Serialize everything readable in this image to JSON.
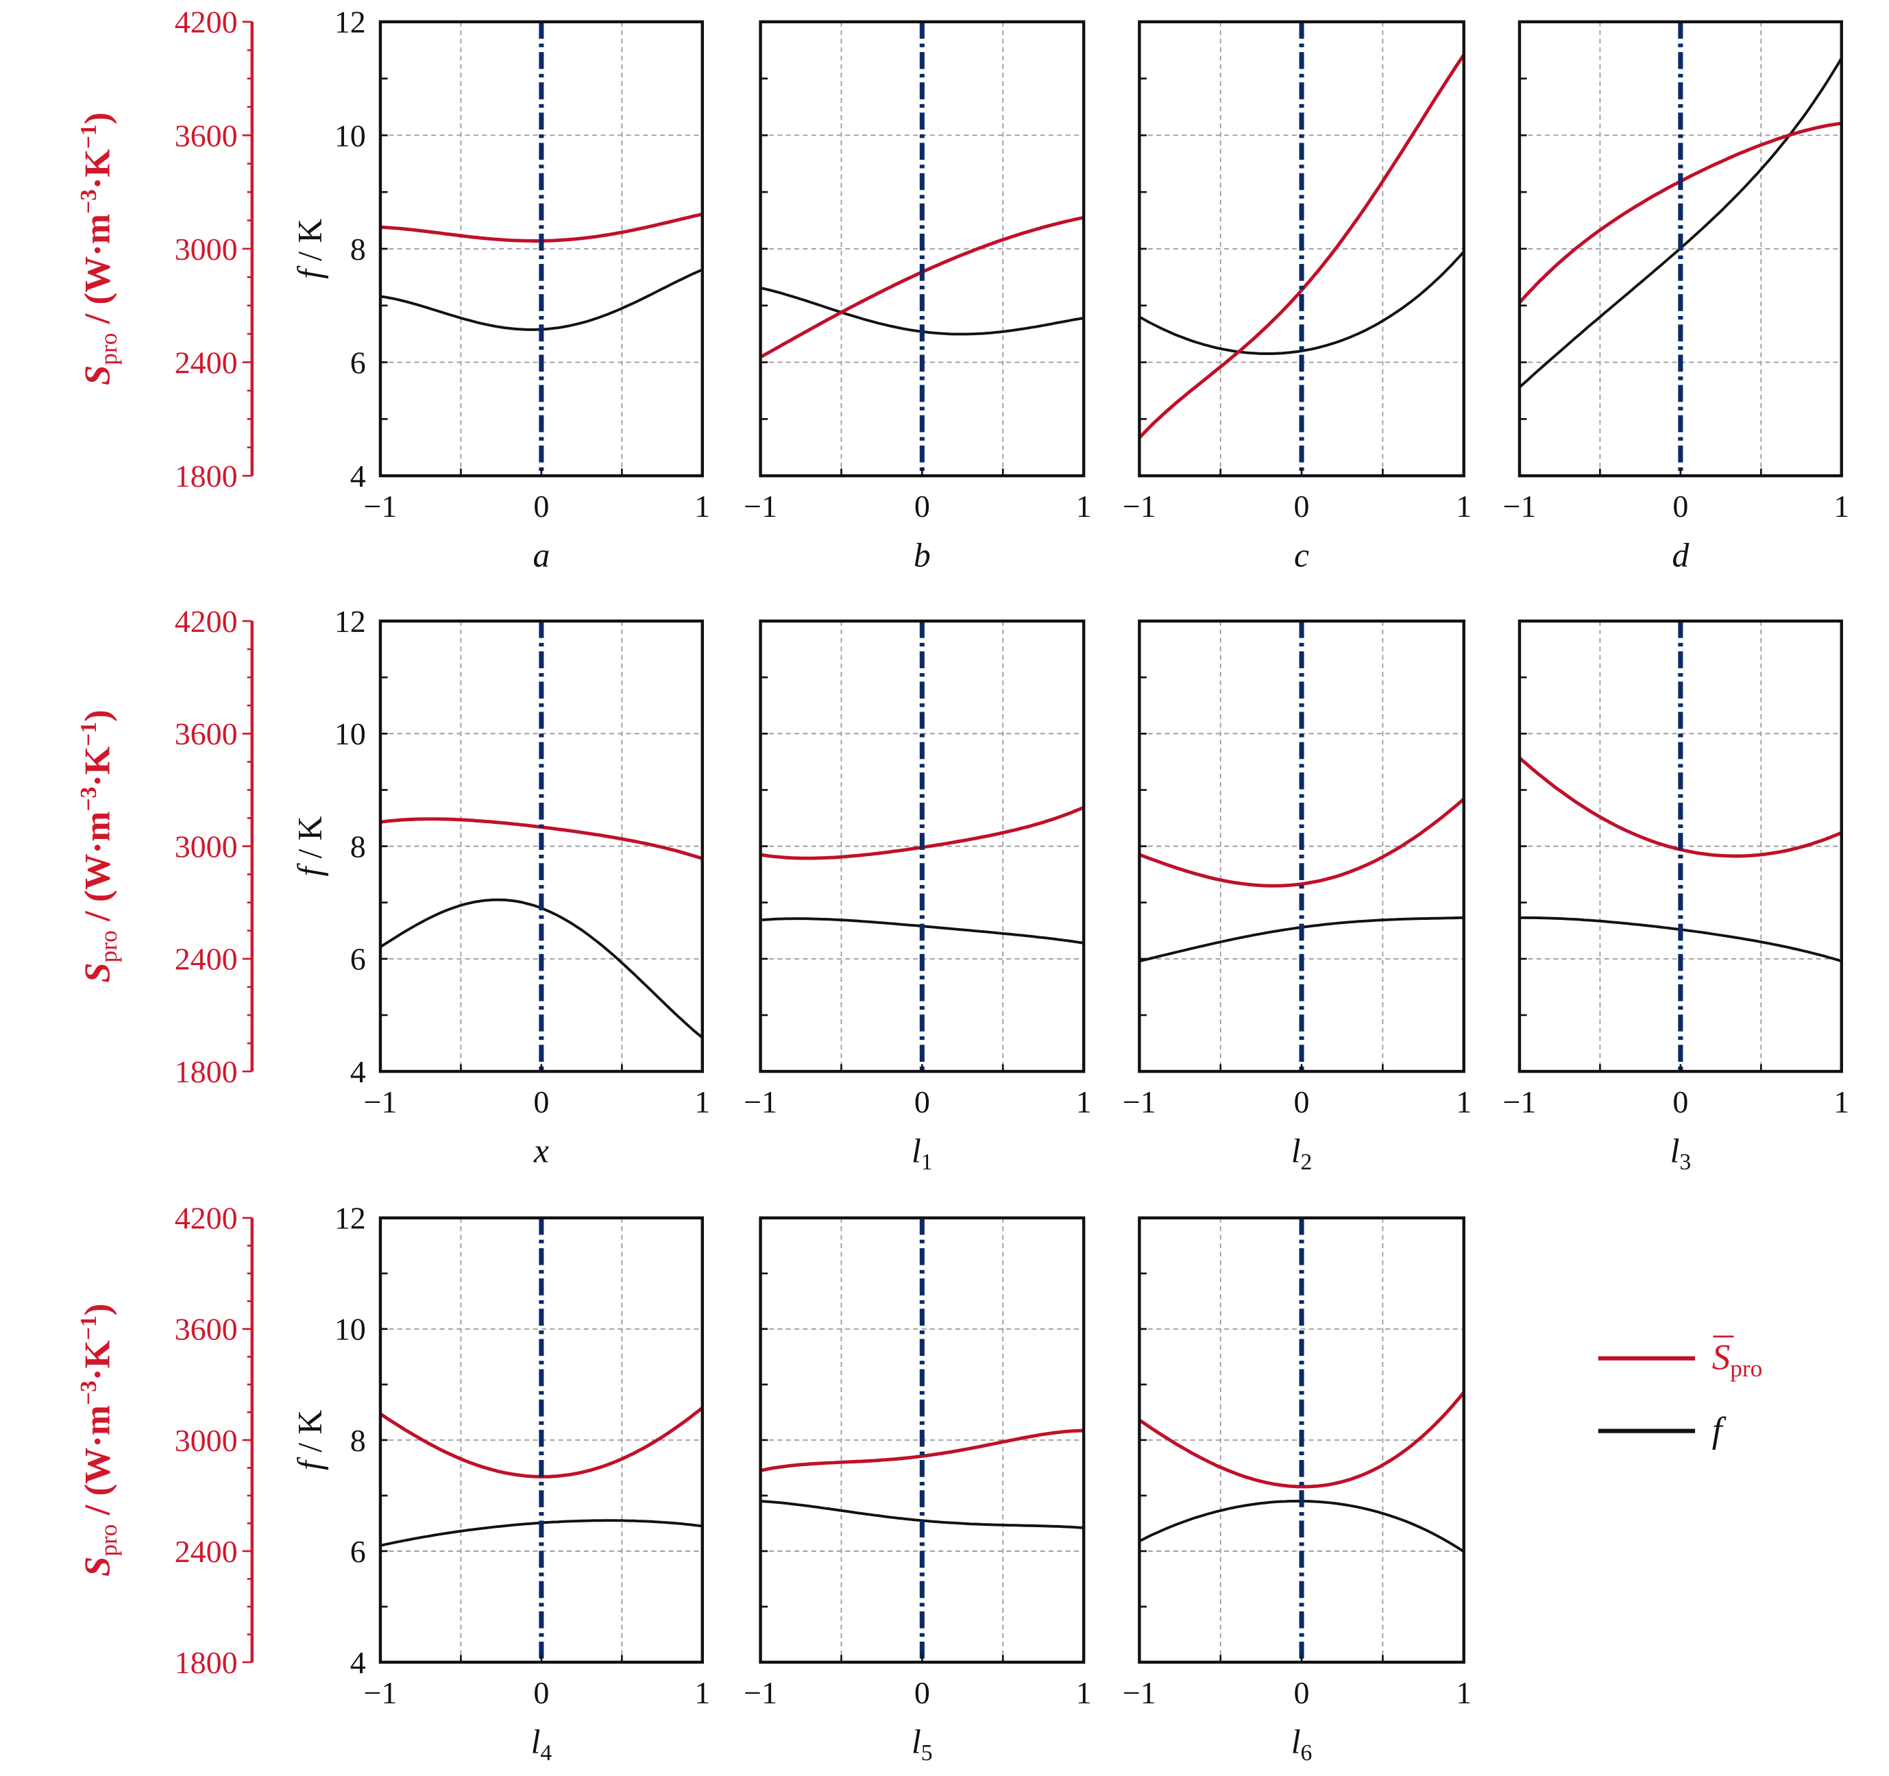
{
  "chart_data": {
    "type": "line",
    "layout": "3x4 small multiples",
    "colors": {
      "S_pro": "#c0102a",
      "f": "#111111",
      "center_line": "#0b2a66",
      "grid": "#999999",
      "red_axis": "#d0182b"
    },
    "x_ticks": [
      "−1",
      "0",
      "1"
    ],
    "x_range": [
      -1,
      1
    ],
    "y_left": {
      "label": {
        "symbol": "f",
        "unit": " / K"
      },
      "range": [
        4,
        12
      ],
      "ticks": [
        "4",
        "6",
        "8",
        "10",
        "12"
      ]
    },
    "y_red": {
      "label": {
        "symbol": "S",
        "sub": "pro",
        "unit": " / (W·m",
        "exp1": "−3",
        "mid": "·K",
        "exp2": "−1",
        "close": ")"
      },
      "range": [
        1800,
        4200
      ],
      "ticks": [
        "1800",
        "2400",
        "3000",
        "3600",
        "4200"
      ]
    },
    "grid": true,
    "center_line_at": 0,
    "legend": {
      "placement": "bottom-right",
      "items": [
        {
          "symbol": "S",
          "sub": "pro",
          "series": "S_pro"
        },
        {
          "symbol": "f",
          "sub": "",
          "series": "f"
        }
      ]
    },
    "x": [
      -1,
      -0.5,
      0,
      0.5,
      1
    ],
    "panels": [
      {
        "xlabel": {
          "main": "a",
          "sub": ""
        },
        "S_pro": [
          3114,
          3069,
          3042,
          3087,
          3183
        ],
        "f": [
          7.16,
          6.78,
          6.58,
          6.95,
          7.63
        ]
      },
      {
        "xlabel": {
          "main": "b",
          "sub": ""
        },
        "S_pro": [
          2427,
          2664,
          2877,
          3048,
          3165
        ],
        "f": [
          7.31,
          6.88,
          6.54,
          6.54,
          6.78
        ]
      },
      {
        "xlabel": {
          "main": "c",
          "sub": ""
        },
        "S_pro": [
          2001,
          2376,
          2781,
          3357,
          4026
        ],
        "f": [
          6.8,
          6.24,
          6.2,
          6.73,
          7.95
        ]
      },
      {
        "xlabel": {
          "main": "d",
          "sub": ""
        },
        "S_pro": [
          2715,
          3099,
          3357,
          3549,
          3663
        ],
        "f": [
          5.56,
          6.8,
          8.01,
          9.4,
          11.36
        ]
      },
      {
        "xlabel": {
          "main": "x",
          "sub": ""
        },
        "S_pro": [
          3129,
          3141,
          3102,
          3039,
          2934
        ],
        "f": [
          6.21,
          6.95,
          6.9,
          5.93,
          4.6
        ]
      },
      {
        "xlabel": {
          "main": "l",
          "sub": "1"
        },
        "S_pro": [
          2955,
          2943,
          2994,
          3072,
          3207
        ],
        "f": [
          6.69,
          6.69,
          6.58,
          6.45,
          6.28
        ]
      },
      {
        "xlabel": {
          "main": "l",
          "sub": "2"
        },
        "S_pro": [
          2955,
          2820,
          2799,
          2943,
          3252
        ],
        "f": [
          5.96,
          6.3,
          6.56,
          6.69,
          6.73
        ]
      },
      {
        "xlabel": {
          "main": "l",
          "sub": "3"
        },
        "S_pro": [
          3471,
          3156,
          2982,
          2955,
          3072
        ],
        "f": [
          6.73,
          6.67,
          6.52,
          6.3,
          5.96
        ]
      },
      {
        "xlabel": {
          "main": "l",
          "sub": "4"
        },
        "S_pro": [
          3141,
          2898,
          2802,
          2898,
          3174
        ],
        "f": [
          6.1,
          6.36,
          6.51,
          6.55,
          6.45
        ]
      },
      {
        "xlabel": {
          "main": "l",
          "sub": "5"
        },
        "S_pro": [
          2835,
          2880,
          2913,
          2990,
          3051
        ],
        "f": [
          6.9,
          6.73,
          6.55,
          6.47,
          6.42
        ]
      },
      {
        "xlabel": {
          "main": "l",
          "sub": "6"
        },
        "S_pro": [
          3108,
          2853,
          2748,
          2865,
          3258
        ],
        "f": [
          6.18,
          6.73,
          6.9,
          6.68,
          5.99
        ]
      }
    ]
  }
}
